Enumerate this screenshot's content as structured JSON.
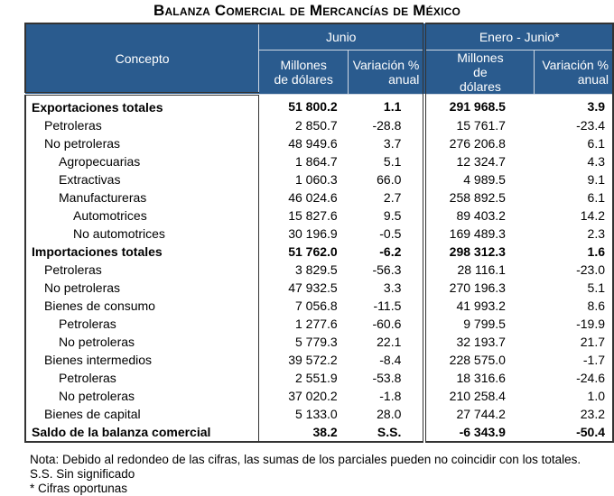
{
  "title": "Balanza Comercial de Mercancías de México",
  "header": {
    "concepto": "Concepto",
    "period1": "Junio",
    "period2": "Enero - Junio*",
    "col_millones": "Millones de dólares",
    "col_variacion": "Variación % anual"
  },
  "rows": [
    {
      "label": "Exportaciones totales",
      "level": 0,
      "bold": true,
      "jun_mill": "51 800.2",
      "jun_var": "1.1",
      "ej_mill": "291 968.5",
      "ej_var": "3.9"
    },
    {
      "label": "Petroleras",
      "level": 1,
      "bold": false,
      "jun_mill": "2 850.7",
      "jun_var": "-28.8",
      "ej_mill": "15 761.7",
      "ej_var": "-23.4"
    },
    {
      "label": "No petroleras",
      "level": 1,
      "bold": false,
      "jun_mill": "48 949.6",
      "jun_var": "3.7",
      "ej_mill": "276 206.8",
      "ej_var": "6.1"
    },
    {
      "label": "Agropecuarias",
      "level": 2,
      "bold": false,
      "jun_mill": "1 864.7",
      "jun_var": "5.1",
      "ej_mill": "12 324.7",
      "ej_var": "4.3"
    },
    {
      "label": "Extractivas",
      "level": 2,
      "bold": false,
      "jun_mill": "1 060.3",
      "jun_var": "66.0",
      "ej_mill": "4 989.5",
      "ej_var": "9.1"
    },
    {
      "label": "Manufactureras",
      "level": 2,
      "bold": false,
      "jun_mill": "46 024.6",
      "jun_var": "2.7",
      "ej_mill": "258 892.5",
      "ej_var": "6.1"
    },
    {
      "label": "Automotrices",
      "level": 3,
      "bold": false,
      "jun_mill": "15 827.6",
      "jun_var": "9.5",
      "ej_mill": "89 403.2",
      "ej_var": "14.2"
    },
    {
      "label": "No automotrices",
      "level": 3,
      "bold": false,
      "jun_mill": "30 196.9",
      "jun_var": "-0.5",
      "ej_mill": "169 489.3",
      "ej_var": "2.3"
    },
    {
      "label": "Importaciones totales",
      "level": 0,
      "bold": true,
      "jun_mill": "51 762.0",
      "jun_var": "-6.2",
      "ej_mill": "298 312.3",
      "ej_var": "1.6"
    },
    {
      "label": "Petroleras",
      "level": 1,
      "bold": false,
      "jun_mill": "3 829.5",
      "jun_var": "-56.3",
      "ej_mill": "28 116.1",
      "ej_var": "-23.0"
    },
    {
      "label": "No petroleras",
      "level": 1,
      "bold": false,
      "jun_mill": "47 932.5",
      "jun_var": "3.3",
      "ej_mill": "270 196.3",
      "ej_var": "5.1"
    },
    {
      "label": "Bienes de consumo",
      "level": 1,
      "bold": false,
      "jun_mill": "7 056.8",
      "jun_var": "-11.5",
      "ej_mill": "41 993.2",
      "ej_var": "8.6"
    },
    {
      "label": "Petroleras",
      "level": 2,
      "bold": false,
      "jun_mill": "1 277.6",
      "jun_var": "-60.6",
      "ej_mill": "9 799.5",
      "ej_var": "-19.9"
    },
    {
      "label": "No petroleras",
      "level": 2,
      "bold": false,
      "jun_mill": "5 779.3",
      "jun_var": "22.1",
      "ej_mill": "32 193.7",
      "ej_var": "21.7"
    },
    {
      "label": "Bienes intermedios",
      "level": 1,
      "bold": false,
      "jun_mill": "39 572.2",
      "jun_var": "-8.4",
      "ej_mill": "228 575.0",
      "ej_var": "-1.7"
    },
    {
      "label": "Petroleras",
      "level": 2,
      "bold": false,
      "jun_mill": "2 551.9",
      "jun_var": "-53.8",
      "ej_mill": "18 316.6",
      "ej_var": "-24.6"
    },
    {
      "label": "No petroleras",
      "level": 2,
      "bold": false,
      "jun_mill": "37 020.2",
      "jun_var": "-1.8",
      "ej_mill": "210 258.4",
      "ej_var": "1.0"
    },
    {
      "label": "Bienes de capital",
      "level": 1,
      "bold": false,
      "jun_mill": "5 133.0",
      "jun_var": "28.0",
      "ej_mill": "27 744.2",
      "ej_var": "23.2"
    },
    {
      "label": "Saldo de la balanza comercial",
      "level": 0,
      "bold": true,
      "jun_mill": "38.2",
      "jun_var": "S.S.",
      "ej_mill": "-6 343.9",
      "ej_var": "-50.4"
    }
  ],
  "notes": [
    "Nota: Debido al redondeo de las cifras, las sumas de los parciales pueden no coincidir con los totales.",
    "S.S. Sin significado",
    "* Cifras oportunas"
  ],
  "colors": {
    "header_bg": "#2a5b8e",
    "header_text": "#ffffff"
  }
}
